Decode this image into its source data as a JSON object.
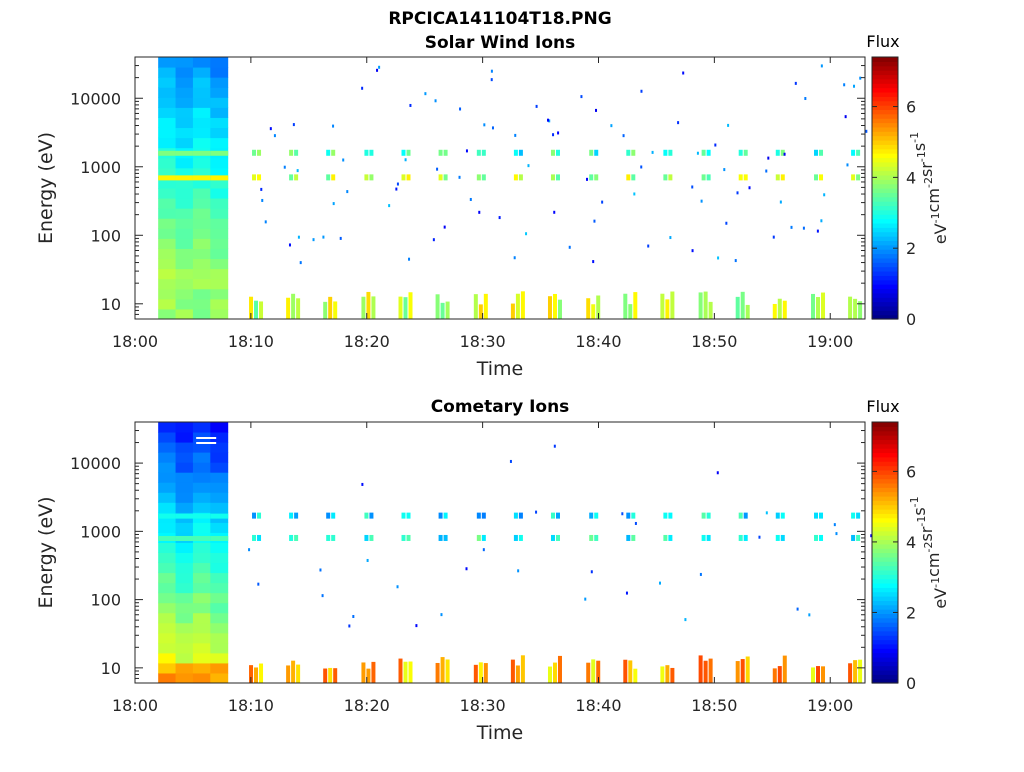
{
  "figure": {
    "title": "RPCICA141104T18.PNG"
  },
  "colormap": {
    "name": "jet",
    "stops": [
      "#00007f",
      "#0000ff",
      "#007fff",
      "#00ffff",
      "#7fff7f",
      "#ffff00",
      "#ff7f00",
      "#ff0000",
      "#7f0000"
    ]
  },
  "chart_data": [
    {
      "type": "heatmap",
      "title": "Solar Wind Ions",
      "xlabel": "Time",
      "ylabel": "Energy (eV)",
      "y_scale": "log",
      "ylim": [
        6,
        40000
      ],
      "xlim": [
        "18:00",
        "19:03"
      ],
      "x_ticks": [
        "18:00",
        "18:10",
        "18:20",
        "18:30",
        "18:40",
        "18:50",
        "19:00"
      ],
      "y_ticks": [
        "10",
        "100",
        "1000",
        "10000"
      ],
      "colorbar": {
        "title": "Flux",
        "label": "eV-1cm-2sr-1s-1",
        "range": [
          0,
          7.4
        ],
        "ticks": [
          "0",
          "2",
          "4",
          "6"
        ]
      },
      "cycle_starts_min": [
        10.1,
        13.3,
        16.5,
        19.8,
        23.0,
        26.2,
        29.5,
        32.7,
        35.9,
        39.2,
        42.4,
        45.6,
        48.9,
        52.1,
        55.3,
        58.6,
        61.8
      ],
      "bands": [
        {
          "energy_eV": 700,
          "flux": 4.1
        },
        {
          "energy_eV": 1600,
          "flux": 3.1
        },
        {
          "energy_eV": 10,
          "flux": 4.2
        }
      ],
      "background_block": {
        "start": "18:02",
        "end": "18:08"
      }
    },
    {
      "type": "heatmap",
      "title": "Cometary Ions",
      "xlabel": "Time",
      "ylabel": "Energy (eV)",
      "y_scale": "log",
      "ylim": [
        6,
        40000
      ],
      "xlim": [
        "18:00",
        "19:03"
      ],
      "x_ticks": [
        "18:00",
        "18:10",
        "18:20",
        "18:30",
        "18:40",
        "18:50",
        "19:00"
      ],
      "y_ticks": [
        "10",
        "100",
        "1000",
        "10000"
      ],
      "colorbar": {
        "title": "Flux",
        "label": "eV-1cm-2sr-1s-1",
        "range": [
          0,
          7.4
        ],
        "ticks": [
          "0",
          "2",
          "4",
          "6"
        ]
      },
      "cycle_starts_min": [
        10.1,
        13.3,
        16.5,
        19.8,
        23.0,
        26.2,
        29.5,
        32.7,
        35.9,
        39.2,
        42.4,
        45.6,
        48.9,
        52.1,
        55.3,
        58.6,
        61.8
      ],
      "bands": [
        {
          "energy_eV": 800,
          "flux": 3.0
        },
        {
          "energy_eV": 1700,
          "flux": 2.6
        },
        {
          "energy_eV": 9,
          "flux": 5.2
        }
      ],
      "background_block": {
        "start": "18:02",
        "end": "18:08"
      }
    }
  ]
}
